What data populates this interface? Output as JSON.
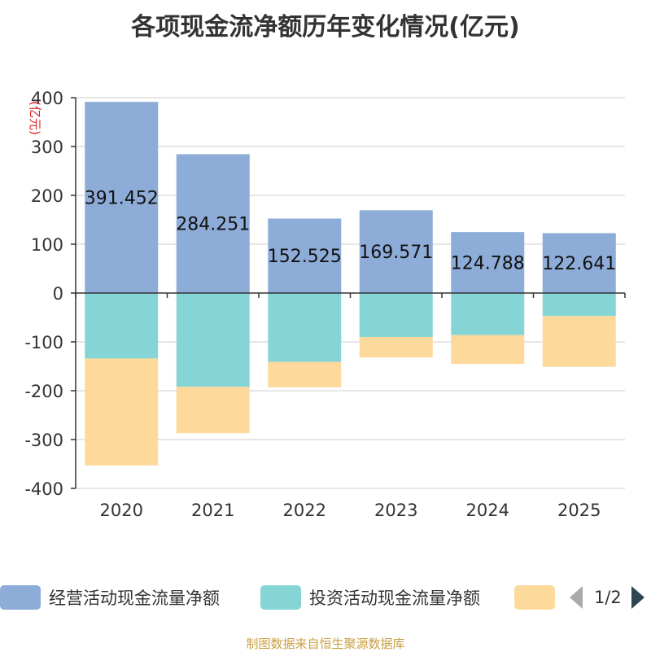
{
  "chart_data": {
    "type": "bar",
    "stacked": true,
    "title": "各项现金流净额历年变化情况(亿元)",
    "ylabel": "(亿元)",
    "categories": [
      "2020",
      "2021",
      "2022",
      "2023",
      "2024",
      "2025"
    ],
    "series": [
      {
        "name": "经营活动现金流量净额",
        "color": "#8eacd8",
        "values": [
          391.452,
          284.251,
          152.525,
          169.571,
          124.788,
          122.641
        ],
        "value_labels": [
          "391.452",
          "284.251",
          "152.525",
          "169.571",
          "124.788",
          "122.641"
        ]
      },
      {
        "name": "投资活动现金流量净额",
        "color": "#85d5d6",
        "values": [
          -134,
          -192,
          -141,
          -90,
          -86,
          -47
        ]
      },
      {
        "name": "",
        "color": "#fdd99b",
        "values": [
          -219,
          -95,
          -52,
          -42,
          -59,
          -104
        ]
      }
    ],
    "ylim": [
      -400,
      400
    ],
    "yticks": [
      400,
      300,
      200,
      100,
      0,
      -100,
      -200,
      -300,
      -400
    ],
    "ytick_labels": [
      "400",
      "300",
      "200",
      "100",
      "0",
      "-100",
      "-200",
      "-300",
      "-400"
    ],
    "grid": true,
    "legend_position": "bottom"
  },
  "legend": {
    "items": [
      "经营活动现金流量净额",
      "投资活动现金流量净额",
      ""
    ],
    "page": "1/2"
  },
  "colors": {
    "axis": "#333333",
    "grid": "#cccccc",
    "ylabel": "#e02020",
    "source": "#c8a040"
  },
  "source": "制图数据来自恒生聚源数据库"
}
